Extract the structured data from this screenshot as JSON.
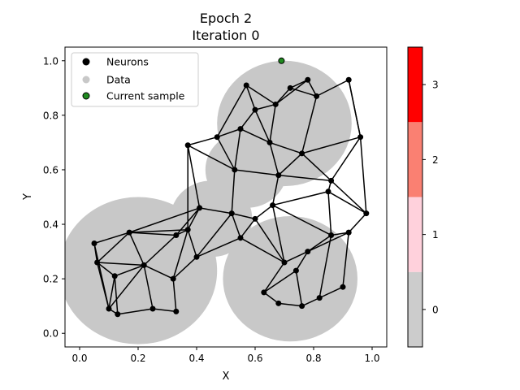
{
  "chart_data": {
    "type": "scatter",
    "title": "Epoch 2",
    "subtitle": "Iteration 0",
    "xlabel": "X",
    "ylabel": "Y",
    "xlim": [
      -0.05,
      1.05
    ],
    "ylim": [
      -0.05,
      1.05
    ],
    "xticks": [
      "0.0",
      "0.2",
      "0.4",
      "0.6",
      "0.8",
      "1.0"
    ],
    "xtick_values": [
      0.0,
      0.2,
      0.4,
      0.6,
      0.8,
      1.0
    ],
    "yticks": [
      "0.0",
      "0.2",
      "0.4",
      "0.6",
      "0.8",
      "1.0"
    ],
    "ytick_values": [
      0.0,
      0.2,
      0.4,
      0.6,
      0.8,
      1.0
    ],
    "grid": false,
    "legend": {
      "placement": "top-left",
      "entries": [
        {
          "label": "Neurons",
          "color": "#000000"
        },
        {
          "label": "Data",
          "color": "#c8c8c8"
        },
        {
          "label": "Current sample",
          "color": "#1f8a1f"
        }
      ]
    },
    "colorbar": {
      "range": [
        -0.5,
        3.5
      ],
      "bands": [
        {
          "from": -0.5,
          "to": 0.5,
          "color": "#cccccc"
        },
        {
          "from": 0.5,
          "to": 1.5,
          "color": "#ffd1dc"
        },
        {
          "from": 1.5,
          "to": 2.5,
          "color": "#fa8072"
        },
        {
          "from": 2.5,
          "to": 3.5,
          "color": "#ff0000"
        }
      ],
      "ticks": [
        "0",
        "1",
        "2",
        "3"
      ],
      "tick_values": [
        0,
        1,
        2,
        3
      ]
    },
    "data_color": "#c8c8c8",
    "data_blobs": [
      {
        "cx": 0.2,
        "cy": 0.23,
        "r": 0.27
      },
      {
        "cx": 0.72,
        "cy": 0.2,
        "r": 0.23
      },
      {
        "cx": 0.7,
        "cy": 0.77,
        "r": 0.23
      },
      {
        "cx": 0.57,
        "cy": 0.6,
        "r": 0.14
      },
      {
        "cx": 0.45,
        "cy": 0.42,
        "r": 0.14
      }
    ],
    "neurons": [
      [
        0.06,
        0.26
      ],
      [
        0.17,
        0.37
      ],
      [
        0.22,
        0.25
      ],
      [
        0.37,
        0.38
      ],
      [
        0.25,
        0.09
      ],
      [
        0.1,
        0.09
      ],
      [
        0.13,
        0.07
      ],
      [
        0.33,
        0.08
      ],
      [
        0.33,
        0.36
      ],
      [
        0.47,
        0.72
      ],
      [
        0.55,
        0.75
      ],
      [
        0.57,
        0.91
      ],
      [
        0.6,
        0.82
      ],
      [
        0.67,
        0.84
      ],
      [
        0.72,
        0.9
      ],
      [
        0.76,
        0.66
      ],
      [
        0.65,
        0.7
      ],
      [
        0.68,
        0.58
      ],
      [
        0.66,
        0.47
      ],
      [
        0.7,
        0.26
      ],
      [
        0.78,
        0.3
      ],
      [
        0.74,
        0.23
      ],
      [
        0.76,
        0.1
      ],
      [
        0.82,
        0.13
      ],
      [
        0.86,
        0.56
      ],
      [
        0.85,
        0.52
      ],
      [
        0.81,
        0.87
      ],
      [
        0.68,
        0.11
      ],
      [
        0.92,
        0.37
      ],
      [
        0.86,
        0.36
      ],
      [
        0.9,
        0.17
      ],
      [
        0.52,
        0.44
      ],
      [
        0.41,
        0.46
      ],
      [
        0.6,
        0.42
      ],
      [
        0.53,
        0.6
      ],
      [
        0.4,
        0.28
      ],
      [
        0.05,
        0.33
      ],
      [
        0.12,
        0.21
      ],
      [
        0.32,
        0.2
      ],
      [
        0.96,
        0.72
      ],
      [
        0.78,
        0.93
      ],
      [
        0.92,
        0.93
      ],
      [
        0.37,
        0.69
      ],
      [
        0.55,
        0.35
      ],
      [
        0.98,
        0.44
      ],
      [
        0.63,
        0.15
      ]
    ],
    "edges": [
      [
        0,
        1
      ],
      [
        1,
        2
      ],
      [
        2,
        0
      ],
      [
        1,
        3
      ],
      [
        2,
        8
      ],
      [
        3,
        8
      ],
      [
        2,
        4
      ],
      [
        4,
        7
      ],
      [
        0,
        5
      ],
      [
        5,
        6
      ],
      [
        6,
        4
      ],
      [
        2,
        5
      ],
      [
        8,
        1
      ],
      [
        3,
        32
      ],
      [
        32,
        31
      ],
      [
        31,
        33
      ],
      [
        33,
        18
      ],
      [
        18,
        17
      ],
      [
        17,
        34
      ],
      [
        34,
        31
      ],
      [
        9,
        10
      ],
      [
        10,
        12
      ],
      [
        12,
        11
      ],
      [
        11,
        13
      ],
      [
        13,
        14
      ],
      [
        14,
        40
      ],
      [
        40,
        26
      ],
      [
        26,
        41
      ],
      [
        41,
        39
      ],
      [
        39,
        15
      ],
      [
        15,
        17
      ],
      [
        16,
        10
      ],
      [
        16,
        13
      ],
      [
        16,
        15
      ],
      [
        16,
        17
      ],
      [
        9,
        34
      ],
      [
        10,
        34
      ],
      [
        15,
        24
      ],
      [
        24,
        25
      ],
      [
        25,
        18
      ],
      [
        18,
        19
      ],
      [
        19,
        20
      ],
      [
        20,
        21
      ],
      [
        21,
        22
      ],
      [
        22,
        23
      ],
      [
        23,
        30
      ],
      [
        30,
        28
      ],
      [
        28,
        29
      ],
      [
        29,
        20
      ],
      [
        19,
        33
      ],
      [
        22,
        27
      ],
      [
        27,
        45
      ],
      [
        45,
        19
      ],
      [
        21,
        45
      ],
      [
        20,
        28
      ],
      [
        25,
        29
      ],
      [
        24,
        39
      ],
      [
        15,
        26
      ],
      [
        12,
        16
      ],
      [
        11,
        9
      ],
      [
        9,
        42
      ],
      [
        42,
        3
      ],
      [
        42,
        32
      ],
      [
        36,
        0
      ],
      [
        36,
        1
      ],
      [
        37,
        0
      ],
      [
        37,
        2
      ],
      [
        38,
        2
      ],
      [
        38,
        3
      ],
      [
        38,
        35
      ],
      [
        35,
        3
      ],
      [
        35,
        31
      ],
      [
        35,
        43
      ],
      [
        43,
        33
      ],
      [
        43,
        19
      ],
      [
        44,
        28
      ],
      [
        44,
        39
      ],
      [
        44,
        24
      ],
      [
        7,
        38
      ],
      [
        6,
        37
      ],
      [
        5,
        37
      ],
      [
        14,
        26
      ],
      [
        13,
        12
      ],
      [
        17,
        24
      ],
      [
        18,
        29
      ],
      [
        32,
        8
      ],
      [
        36,
        5
      ],
      [
        1,
        32
      ],
      [
        34,
        42
      ],
      [
        31,
        43
      ],
      [
        41,
        39
      ],
      [
        40,
        13
      ],
      [
        25,
        44
      ],
      [
        23,
        29
      ]
    ],
    "current_sample": [
      0.69,
      1.0
    ]
  }
}
